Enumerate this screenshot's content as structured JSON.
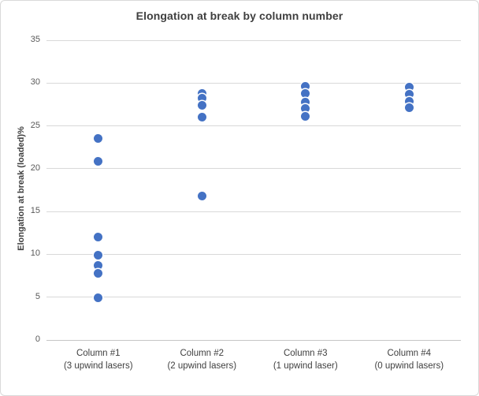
{
  "chart_data": {
    "type": "scatter",
    "title": "Elongation at break by column number",
    "ylabel": "Elongation at break (loaded)%",
    "xlabel": "",
    "ylim": [
      0,
      35
    ],
    "yticks": [
      0,
      5,
      10,
      15,
      20,
      25,
      30,
      35
    ],
    "grid": true,
    "legend_position": "none",
    "marker_color": "#4472c4",
    "categories": [
      {
        "label_lines": [
          "Column #1",
          "(3 upwind lasers)"
        ],
        "values": [
          23.5,
          20.9,
          12.0,
          9.9,
          8.7,
          7.8,
          4.9
        ]
      },
      {
        "label_lines": [
          "Column #2",
          "(2 upwind lasers)"
        ],
        "values": [
          28.8,
          28.2,
          27.4,
          26.0,
          16.8
        ]
      },
      {
        "label_lines": [
          "Column #3",
          "(1 upwind laser)"
        ],
        "values": [
          29.6,
          28.8,
          27.8,
          27.0,
          26.1
        ]
      },
      {
        "label_lines": [
          "Column #4",
          "(0 upwind lasers)"
        ],
        "values": [
          29.5,
          28.7,
          27.9,
          27.1
        ]
      }
    ]
  },
  "colors": {
    "marker": "#4472c4",
    "title_text": "#3f3f3f",
    "axis_text": "#595959",
    "category_text": "#404040",
    "gridline": "#d9d9d9",
    "zero_axis_line": "#c6c6c6",
    "frame_border": "#d9d9d9",
    "background": "#ffffff"
  }
}
